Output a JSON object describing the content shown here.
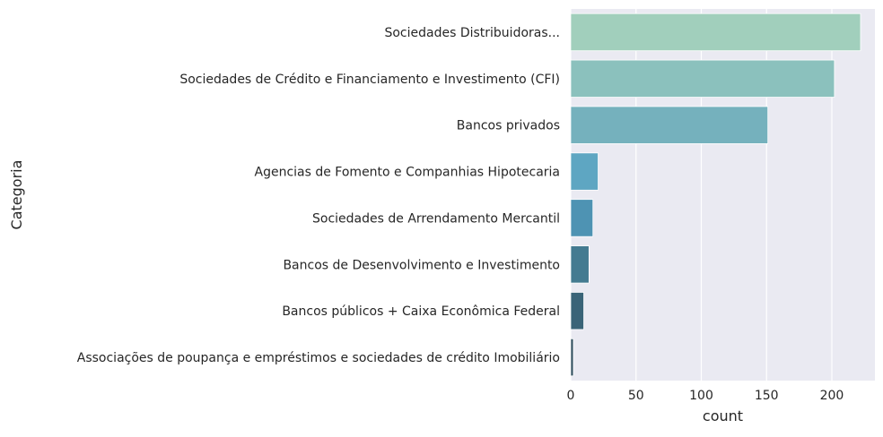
{
  "chart_data": {
    "type": "bar",
    "orientation": "horizontal",
    "xlabel": "count",
    "ylabel": "Categoria",
    "xlim": [
      0,
      233
    ],
    "xticks": [
      0,
      50,
      100,
      150,
      200
    ],
    "grid": true,
    "background": "#eaeaf2",
    "grid_color": "#ffffff",
    "categories": [
      "Sociedades Distribuidoras...",
      "Sociedades de Crédito e Financiamento e Investimento (CFI)",
      "Bancos privados",
      "Agencias de Fomento e Companhias Hipotecaria",
      "Sociedades de Arrendamento Mercantil",
      "Bancos de Desenvolvimento e Investimento",
      "Bancos públicos + Caixa Econômica Federal",
      "Associações de poupança e empréstimos e sociedades de crédito Imobiliário"
    ],
    "values": [
      222,
      202,
      151,
      21,
      17,
      14,
      10,
      2
    ],
    "colors": [
      "#a1cfbc",
      "#8bc1bd",
      "#75b1bd",
      "#5ea6c2",
      "#4e93b3",
      "#447b91",
      "#3a6478",
      "#2f4e5e"
    ]
  }
}
